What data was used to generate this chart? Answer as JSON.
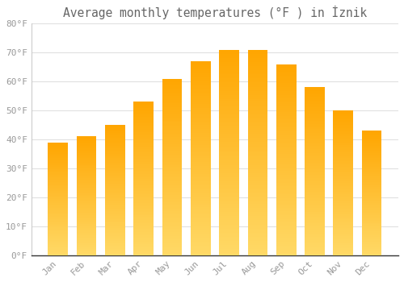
{
  "title": "Average monthly temperatures (°F ) in İznik",
  "months": [
    "Jan",
    "Feb",
    "Mar",
    "Apr",
    "May",
    "Jun",
    "Jul",
    "Aug",
    "Sep",
    "Oct",
    "Nov",
    "Dec"
  ],
  "values": [
    39,
    41,
    45,
    53,
    61,
    67,
    71,
    71,
    66,
    58,
    50,
    43
  ],
  "bar_color_light": "#FFD966",
  "bar_color_dark": "#FFA500",
  "background_color": "#FFFFFF",
  "grid_color": "#E0E0E0",
  "ylim": [
    0,
    80
  ],
  "yticks": [
    0,
    10,
    20,
    30,
    40,
    50,
    60,
    70,
    80
  ],
  "tick_label_color": "#999999",
  "title_color": "#666666",
  "title_fontsize": 10.5,
  "bar_width": 0.7
}
